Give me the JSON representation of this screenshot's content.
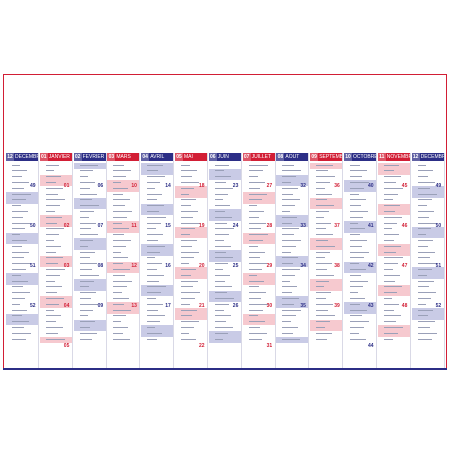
{
  "months": [
    {
      "num": "12",
      "name": "DECEMBRE",
      "color": "blue"
    },
    {
      "num": "01",
      "name": "JANVIER",
      "color": "red"
    },
    {
      "num": "02",
      "name": "FEVRIER",
      "color": "blue"
    },
    {
      "num": "03",
      "name": "MARS",
      "color": "red"
    },
    {
      "num": "04",
      "name": "AVRIL",
      "color": "blue"
    },
    {
      "num": "05",
      "name": "MAI",
      "color": "red"
    },
    {
      "num": "06",
      "name": "JUIN",
      "color": "blue"
    },
    {
      "num": "07",
      "name": "JUILLET",
      "color": "red"
    },
    {
      "num": "08",
      "name": "AOUT",
      "color": "blue"
    },
    {
      "num": "09",
      "name": "SEPTEMBRE",
      "color": "red"
    },
    {
      "num": "10",
      "name": "OCTOBRE",
      "color": "blue"
    },
    {
      "num": "11",
      "name": "NOVEMBRE",
      "color": "red"
    },
    {
      "num": "12",
      "name": "DECEMBRE",
      "color": "blue"
    }
  ],
  "week_numbers": [
    [
      "49",
      "50",
      "51",
      "52"
    ],
    [
      "01",
      "02",
      "03",
      "04",
      "05"
    ],
    [
      "06",
      "07",
      "08",
      "09"
    ],
    [
      "10",
      "11",
      "12",
      "13"
    ],
    [
      "14",
      "15",
      "16",
      "17"
    ],
    [
      "18",
      "19",
      "20",
      "21",
      "22"
    ],
    [
      "23",
      "24",
      "25",
      "26"
    ],
    [
      "27",
      "28",
      "29",
      "30",
      "31"
    ],
    [
      "32",
      "33",
      "34",
      "35"
    ],
    [
      "36",
      "37",
      "38",
      "39"
    ],
    [
      "40",
      "41",
      "42",
      "43",
      "44"
    ],
    [
      "45",
      "46",
      "47",
      "48"
    ],
    [
      "49",
      "50",
      "51",
      "52"
    ]
  ],
  "colors": {
    "blue": "#2c2e86",
    "red": "#d21e35",
    "blue_band": "#c9cbe6",
    "red_band": "#f6c9cf"
  },
  "footer": {
    "left": "",
    "right": ""
  }
}
